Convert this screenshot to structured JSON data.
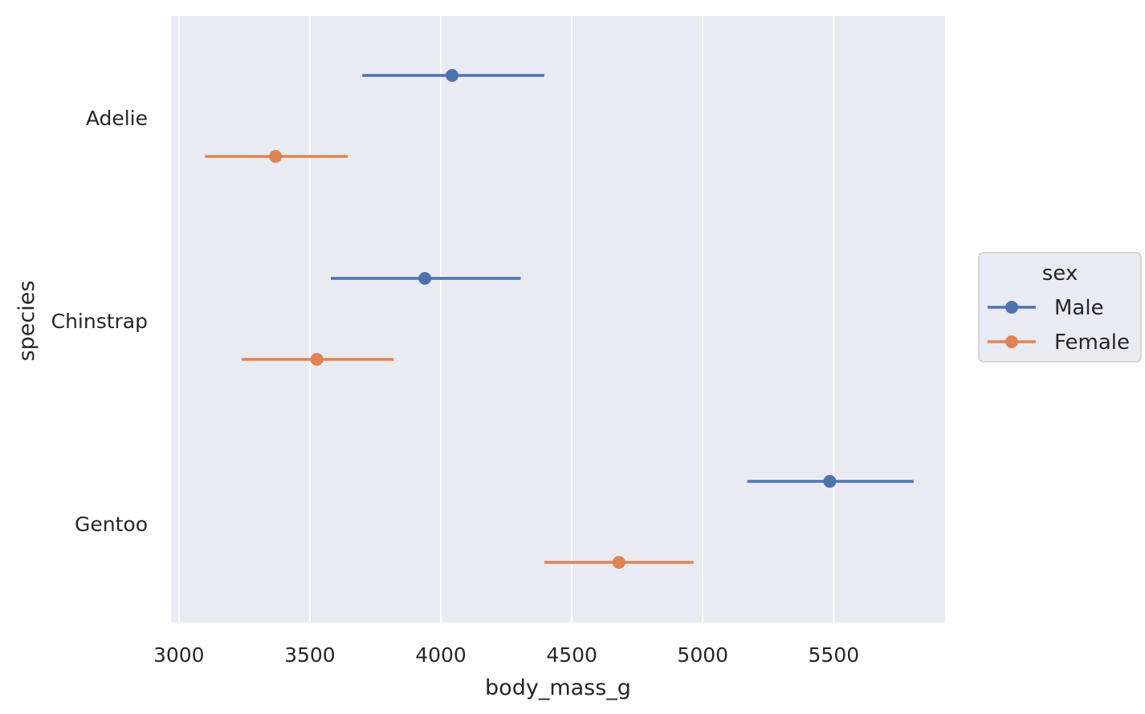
{
  "chart_data": {
    "type": "pointplot",
    "orientation": "horizontal",
    "title": "",
    "xlabel": "body_mass_g",
    "ylabel": "species",
    "xlim": [
      2970,
      5925
    ],
    "xticks": [
      3000,
      3500,
      4000,
      4500,
      5000,
      5500
    ],
    "categories": [
      "Adelie",
      "Chinstrap",
      "Gentoo"
    ],
    "grid": true,
    "background": "#eaeaf2",
    "legend": {
      "title": "sex",
      "placement": "center-right"
    },
    "series": [
      {
        "name": "Male",
        "color": "#4c72b0",
        "values": [
          4043,
          3939,
          5485
        ],
        "ci_low": [
          3700,
          3580,
          5170
        ],
        "ci_high": [
          4395,
          4305,
          5805
        ]
      },
      {
        "name": "Female",
        "color": "#dd8452",
        "values": [
          3369,
          3527,
          4680
        ],
        "ci_low": [
          3100,
          3240,
          4395
        ],
        "ci_high": [
          3645,
          3820,
          4965
        ]
      }
    ]
  }
}
